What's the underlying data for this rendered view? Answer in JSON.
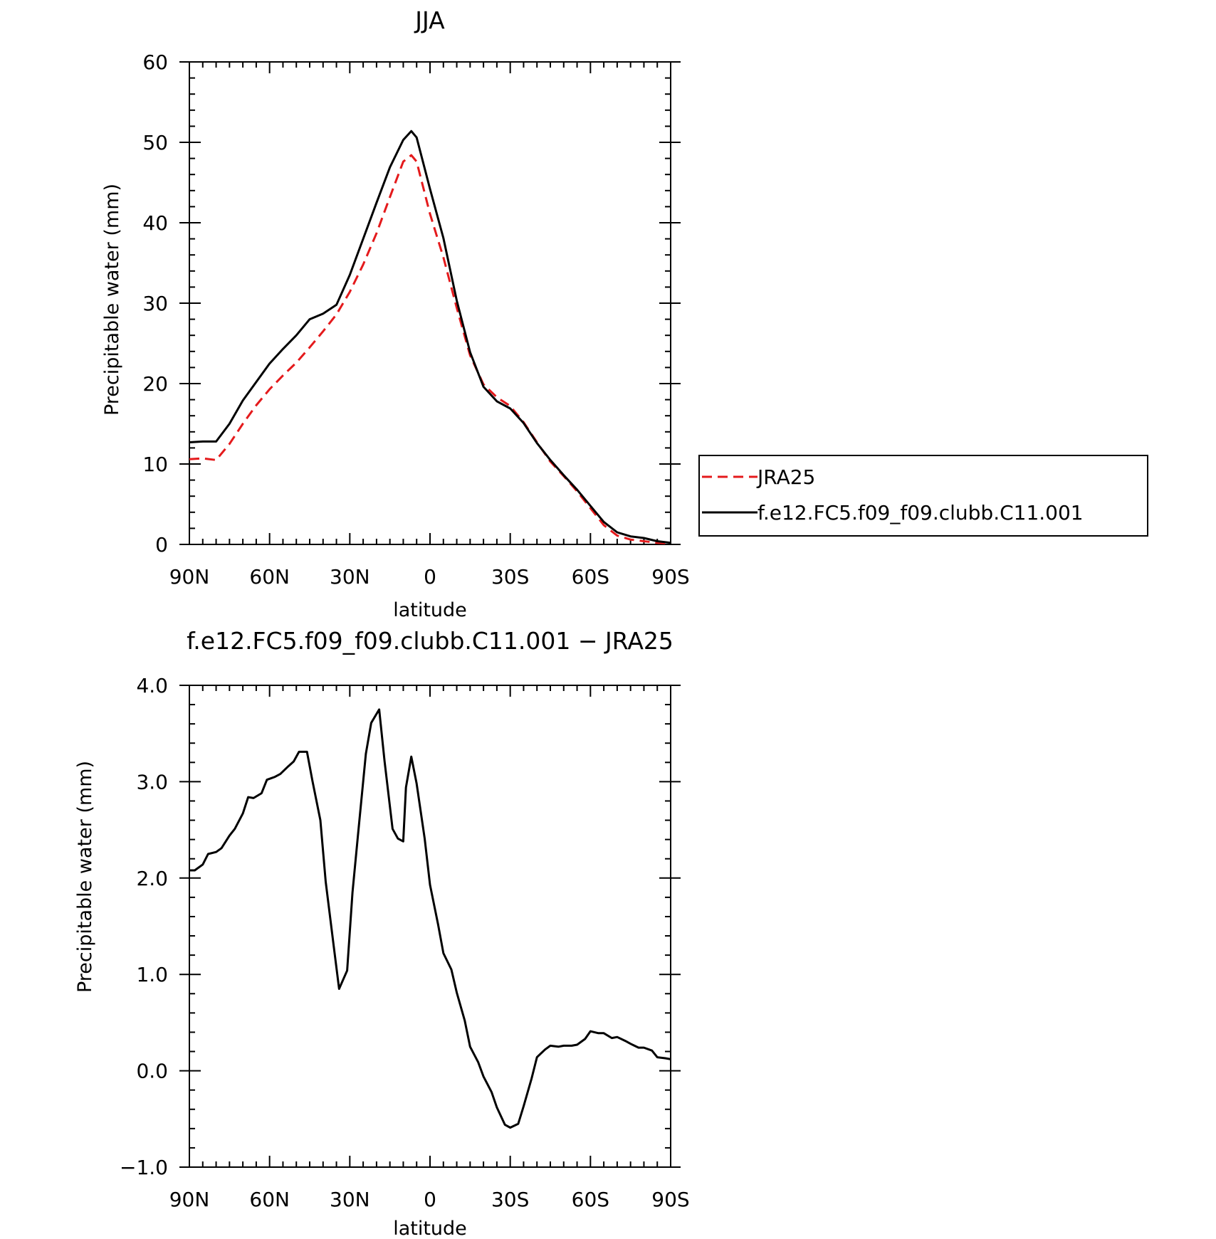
{
  "chart_data": [
    {
      "type": "line",
      "title": "JJA",
      "xlabel": "latitude",
      "ylabel": "Precipitable water (mm)",
      "xlim": [
        90,
        -90
      ],
      "ylim": [
        0,
        60
      ],
      "xticks": [
        90,
        60,
        30,
        0,
        -30,
        -60,
        -90
      ],
      "xtick_labels": [
        "90N",
        "60N",
        "30N",
        "0",
        "30S",
        "60S",
        "90S"
      ],
      "yticks": [
        0,
        10,
        20,
        30,
        40,
        50,
        60
      ],
      "ytick_labels": [
        "0",
        "10",
        "20",
        "30",
        "40",
        "50",
        "60"
      ],
      "grid": false,
      "legend": "right",
      "series": [
        {
          "name": "JRA25",
          "color": "#e41a1c",
          "dash": "dashed",
          "x": [
            90,
            85,
            80,
            75,
            70,
            65,
            60,
            55,
            50,
            45,
            40,
            35,
            30,
            25,
            20,
            15,
            10,
            7,
            5,
            0,
            -5,
            -10,
            -15,
            -20,
            -25,
            -30,
            -35,
            -40,
            -45,
            -50,
            -55,
            -60,
            -65,
            -70,
            -75,
            -80,
            -85,
            -90
          ],
          "y": [
            10.6,
            10.7,
            10.5,
            12.5,
            15.0,
            17.3,
            19.3,
            21.0,
            22.6,
            24.5,
            26.5,
            28.6,
            31.4,
            34.8,
            38.7,
            43.2,
            47.6,
            48.4,
            47.6,
            41.1,
            35.7,
            29.4,
            23.5,
            19.9,
            18.3,
            17.2,
            15.2,
            12.7,
            10.3,
            8.5,
            6.6,
            4.5,
            2.4,
            1.1,
            0.6,
            0.4,
            0.2,
            0.1
          ]
        },
        {
          "name": "f.e12.FC5.f09_f09.clubb.C11.001",
          "color": "#000000",
          "dash": "solid",
          "x": [
            90,
            85,
            80,
            75,
            70,
            65,
            60,
            55,
            50,
            45,
            40,
            35,
            30,
            25,
            20,
            15,
            10,
            7,
            5,
            0,
            -5,
            -10,
            -15,
            -20,
            -25,
            -30,
            -35,
            -40,
            -45,
            -50,
            -55,
            -60,
            -65,
            -70,
            -75,
            -80,
            -85,
            -90
          ],
          "y": [
            12.7,
            12.8,
            12.8,
            15.0,
            17.9,
            20.2,
            22.5,
            24.3,
            26.0,
            28.0,
            28.7,
            29.8,
            33.5,
            38.0,
            42.5,
            46.9,
            50.3,
            51.4,
            50.6,
            44.2,
            38.1,
            30.3,
            23.9,
            19.6,
            17.8,
            16.9,
            15.1,
            12.6,
            10.5,
            8.6,
            6.8,
            4.8,
            2.8,
            1.5,
            1.0,
            0.8,
            0.4,
            0.2
          ]
        }
      ]
    },
    {
      "type": "line",
      "title": "f.e12.FC5.f09_f09.clubb.C11.001 − JRA25",
      "xlabel": "latitude",
      "ylabel": "Precipitable water (mm)",
      "xlim": [
        90,
        -90
      ],
      "ylim": [
        -1.0,
        4.0
      ],
      "xticks": [
        90,
        60,
        30,
        0,
        -30,
        -60,
        -90
      ],
      "xtick_labels": [
        "90N",
        "60N",
        "30N",
        "0",
        "30S",
        "60S",
        "90S"
      ],
      "yticks": [
        -1.0,
        0.0,
        1.0,
        2.0,
        3.0,
        4.0
      ],
      "ytick_labels": [
        "−1.0",
        "0.0",
        "1.0",
        "2.0",
        "3.0",
        "4.0"
      ],
      "grid": false,
      "series": [
        {
          "color": "#000000",
          "dash": "solid",
          "x": [
            90,
            88,
            85,
            83,
            80,
            78,
            75,
            73,
            70,
            68,
            66,
            63,
            61,
            58,
            56,
            53,
            51,
            49,
            46,
            44,
            41,
            39,
            36,
            34,
            31,
            29,
            27,
            24,
            22,
            19,
            17,
            14,
            12,
            10,
            9,
            7,
            5,
            2,
            0,
            -3,
            -5,
            -8,
            -10,
            -13,
            -15,
            -18,
            -20,
            -23,
            -25,
            -28,
            -30,
            -33,
            -35,
            -38,
            -40,
            -43,
            -45,
            -48,
            -50,
            -53,
            -55,
            -58,
            -60,
            -63,
            -65,
            -68,
            -70,
            -73,
            -75,
            -78,
            -80,
            -83,
            -85,
            -88,
            -90
          ],
          "y": [
            2.08,
            2.08,
            2.14,
            2.25,
            2.27,
            2.31,
            2.44,
            2.51,
            2.67,
            2.84,
            2.83,
            2.88,
            3.02,
            3.05,
            3.08,
            3.16,
            3.21,
            3.31,
            3.31,
            3.01,
            2.6,
            1.96,
            1.29,
            0.85,
            1.04,
            1.85,
            2.43,
            3.29,
            3.61,
            3.75,
            3.21,
            2.51,
            2.41,
            2.38,
            2.94,
            3.26,
            2.98,
            2.41,
            1.93,
            1.52,
            1.22,
            1.05,
            0.81,
            0.52,
            0.25,
            0.09,
            -0.06,
            -0.22,
            -0.38,
            -0.56,
            -0.59,
            -0.55,
            -0.37,
            -0.08,
            0.14,
            0.22,
            0.26,
            0.25,
            0.26,
            0.26,
            0.27,
            0.33,
            0.41,
            0.39,
            0.39,
            0.34,
            0.35,
            0.31,
            0.28,
            0.24,
            0.24,
            0.21,
            0.14,
            0.13,
            0.12
          ]
        }
      ]
    }
  ]
}
